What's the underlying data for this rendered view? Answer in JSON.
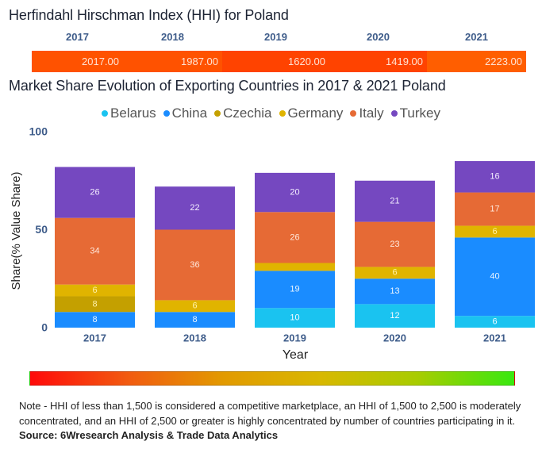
{
  "chart_data": [
    {
      "type": "table",
      "title": "Herfindahl Hirschman Index (HHI) for Poland",
      "columns": [
        "2017",
        "2018",
        "2019",
        "2020",
        "2021"
      ],
      "values": [
        "2017.00",
        "1987.00",
        "1620.00",
        "1419.00",
        "2223.00"
      ],
      "cell_colors": [
        "#FF5200",
        "#FF5200",
        "#FF4300",
        "#FF4300",
        "#FF5E00"
      ]
    },
    {
      "type": "bar",
      "stacked": true,
      "title": "Market Share Evolution of Exporting Countries in 2017 & 2021 Poland",
      "categories": [
        "2017",
        "2018",
        "2019",
        "2020",
        "2021"
      ],
      "xlabel": "Year",
      "ylabel": "Share(% Value Share)",
      "ylim": [
        0,
        100
      ],
      "yticks": [
        0,
        50,
        100
      ],
      "ytick_labels": [
        "0",
        "50",
        "100"
      ],
      "grid": false,
      "legend": "top-center",
      "series": [
        {
          "name": "Belarus",
          "color": "#1AC3F0",
          "label_color": "#F2FBFF",
          "values": [
            null,
            null,
            10,
            12,
            6
          ]
        },
        {
          "name": "China",
          "color": "#1A8CFF",
          "label_color": "#EAF4FF",
          "values": [
            8,
            8,
            19,
            13,
            40
          ]
        },
        {
          "name": "Czechia",
          "color": "#C4A000",
          "label_color": "#FFF2A8",
          "values": [
            8,
            null,
            null,
            null,
            null
          ]
        },
        {
          "name": "Germany",
          "color": "#E0B400",
          "label_color": "#FFF2A8",
          "values": [
            6,
            6,
            4,
            6,
            6
          ]
        },
        {
          "name": "Italy",
          "color": "#E66A35",
          "label_color": "#FFE8DC",
          "values": [
            34,
            36,
            26,
            23,
            17
          ]
        },
        {
          "name": "Turkey",
          "color": "#7548C0",
          "label_color": "#F4EEFF",
          "values": [
            26,
            22,
            20,
            21,
            16
          ]
        }
      ]
    }
  ],
  "scale": {
    "name": "HHI color scale",
    "colors": [
      "#FF0A0A",
      "#F25A10",
      "#E29A00",
      "#D8B800",
      "#A8CC00",
      "#38E810"
    ]
  },
  "footer": {
    "note": "Note - HHI of less than 1,500 is considered a competitive marketplace, an HHI of 1,500 to 2,500 is moderately concentrated, and an HHI of 2,500 or greater is highly concentrated by number of countries participating in it.",
    "source": "Source: 6Wresearch Analysis & Trade Data Analytics"
  }
}
